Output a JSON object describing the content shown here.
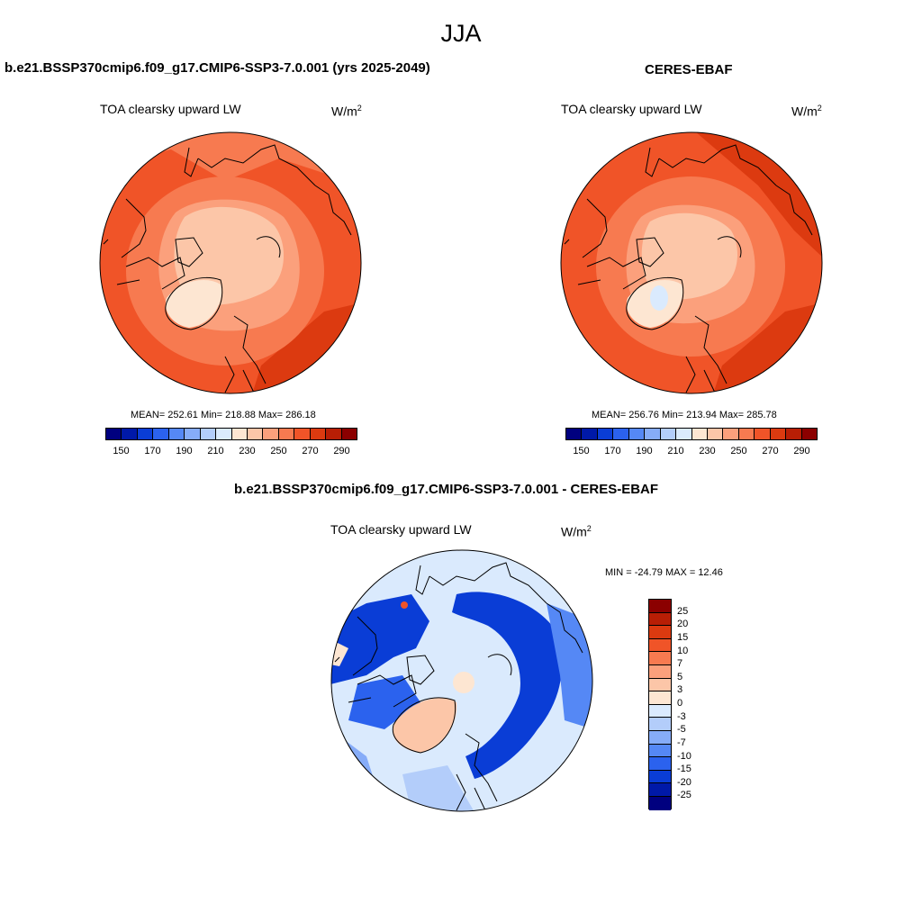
{
  "page": {
    "season": "JJA"
  },
  "panels": [
    {
      "title": "b.e21.BSSP370cmip6.f09_g17.CMIP6-SSP3-7.0.001 (yrs 2025-2049)",
      "variable": "TOA clearsky upward LW",
      "units_base": "W/m",
      "units_exp": "2",
      "stats": "MEAN= 252.61  Min= 218.88  Max= 286.18",
      "colorbar": {
        "colors": [
          "#00007f",
          "#0019a8",
          "#0a3dd6",
          "#2b62ee",
          "#5588f5",
          "#86acf8",
          "#b3cdfa",
          "#daeafd",
          "#fde6d2",
          "#fcc6a8",
          "#fba07c",
          "#f77a50",
          "#f05428",
          "#dc3a10",
          "#b81e05",
          "#8b0000"
        ],
        "ticks": [
          "150",
          "170",
          "190",
          "210",
          "230",
          "250",
          "270",
          "290"
        ]
      }
    },
    {
      "title": "CERES-EBAF",
      "variable": "TOA clearsky upward LW",
      "units_base": "W/m",
      "units_exp": "2",
      "stats": "MEAN= 256.76  Min= 213.94  Max= 285.78",
      "colorbar": {
        "colors": [
          "#00007f",
          "#0019a8",
          "#0a3dd6",
          "#2b62ee",
          "#5588f5",
          "#86acf8",
          "#b3cdfa",
          "#daeafd",
          "#fde6d2",
          "#fcc6a8",
          "#fba07c",
          "#f77a50",
          "#f05428",
          "#dc3a10",
          "#b81e05",
          "#8b0000"
        ],
        "ticks": [
          "150",
          "170",
          "190",
          "210",
          "230",
          "250",
          "270",
          "290"
        ]
      }
    }
  ],
  "diff": {
    "title": "b.e21.BSSP370cmip6.f09_g17.CMIP6-SSP3-7.0.001 - CERES-EBAF",
    "variable": "TOA clearsky upward LW",
    "units_base": "W/m",
    "units_exp": "2",
    "minmax": "MIN = -24.79 MAX =  12.46",
    "colorbar": {
      "colors": [
        "#8b0000",
        "#b81e05",
        "#dc3a10",
        "#f05428",
        "#f77a50",
        "#fba07c",
        "#fcc6a8",
        "#fde6d2",
        "#daeafd",
        "#b3cdfa",
        "#86acf8",
        "#5588f5",
        "#2b62ee",
        "#0a3dd6",
        "#0019a8",
        "#00007f"
      ],
      "ticks": [
        "25",
        "20",
        "15",
        "10",
        "7",
        "5",
        "3",
        "0",
        "-3",
        "-5",
        "-7",
        "-10",
        "-15",
        "-20",
        "-25"
      ]
    }
  }
}
